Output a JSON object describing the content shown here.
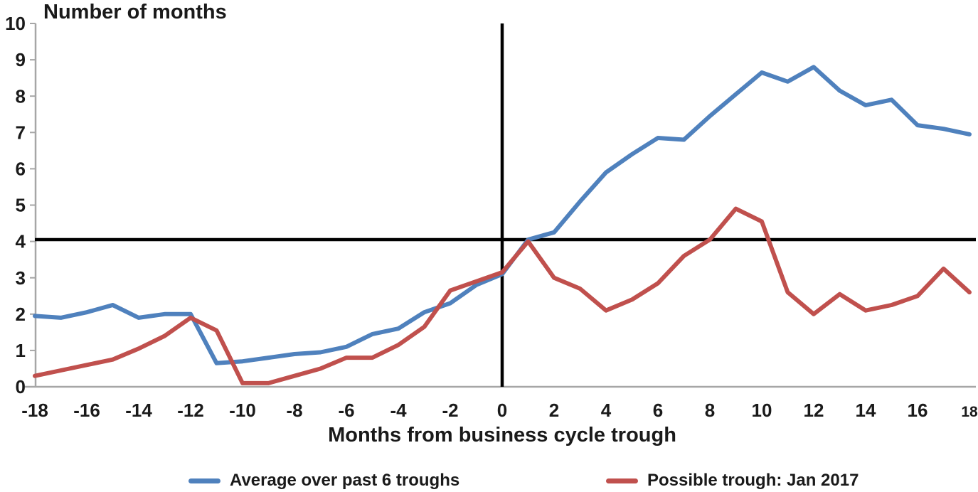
{
  "chart_data": {
    "type": "line",
    "title": "Number of months",
    "xlabel": "Months from business cycle trough",
    "ylabel": "Number of months",
    "x": [
      -18,
      -17,
      -16,
      -15,
      -14,
      -13,
      -12,
      -11,
      -10,
      -9,
      -8,
      -7,
      -6,
      -5,
      -4,
      -3,
      -2,
      -1,
      0,
      1,
      2,
      3,
      4,
      5,
      6,
      7,
      8,
      9,
      10,
      11,
      12,
      13,
      14,
      15,
      16,
      17,
      18
    ],
    "series": [
      {
        "name": "Average over past 6 troughs",
        "color": "#4F81BD",
        "values": [
          1.95,
          1.9,
          2.05,
          2.25,
          1.9,
          2.0,
          2.0,
          0.65,
          0.7,
          0.8,
          0.9,
          0.95,
          1.1,
          1.45,
          1.6,
          2.05,
          2.3,
          2.8,
          3.1,
          4.05,
          4.25,
          5.1,
          5.9,
          6.4,
          6.85,
          6.8,
          7.45,
          8.05,
          8.65,
          8.4,
          8.8,
          8.15,
          7.75,
          7.9,
          7.2,
          7.1,
          6.95
        ]
      },
      {
        "name": "Possible trough: Jan 2017",
        "color": "#C0504D",
        "values": [
          0.3,
          0.45,
          0.6,
          0.75,
          1.05,
          1.4,
          1.9,
          1.55,
          0.1,
          0.1,
          0.3,
          0.5,
          0.8,
          0.8,
          1.15,
          1.65,
          2.65,
          2.9,
          3.15,
          4.0,
          3.0,
          2.7,
          2.1,
          2.4,
          2.85,
          3.6,
          4.05,
          4.9,
          4.55,
          2.6,
          2.0,
          2.55,
          2.1,
          2.25,
          2.5,
          3.25,
          2.6
        ]
      }
    ],
    "reference_lines": [
      {
        "orientation": "horizontal",
        "value": 4.05,
        "color": "#000000"
      },
      {
        "orientation": "vertical",
        "value": 0,
        "color": "#000000"
      }
    ],
    "x_tick_labels": [
      "-18",
      "-16",
      "-14",
      "-12",
      "-10",
      "-8",
      "-6",
      "-4",
      "-2",
      "0",
      "2",
      "4",
      "6",
      "8",
      "10",
      "12",
      "14",
      "16",
      "18"
    ],
    "y_tick_labels": [
      "0",
      "1",
      "2",
      "3",
      "4",
      "5",
      "6",
      "7",
      "8",
      "9",
      "10"
    ],
    "xlim": [
      -18,
      18
    ],
    "ylim": [
      0,
      10
    ],
    "grid": false,
    "legend_position": "bottom",
    "axis_color": "#A6A6A6",
    "text_color": "#1A1A1A"
  },
  "legend": {
    "items": [
      {
        "label": "Average over past 6 troughs",
        "color": "#4F81BD"
      },
      {
        "label": "Possible trough: Jan 2017",
        "color": "#C0504D"
      }
    ]
  }
}
